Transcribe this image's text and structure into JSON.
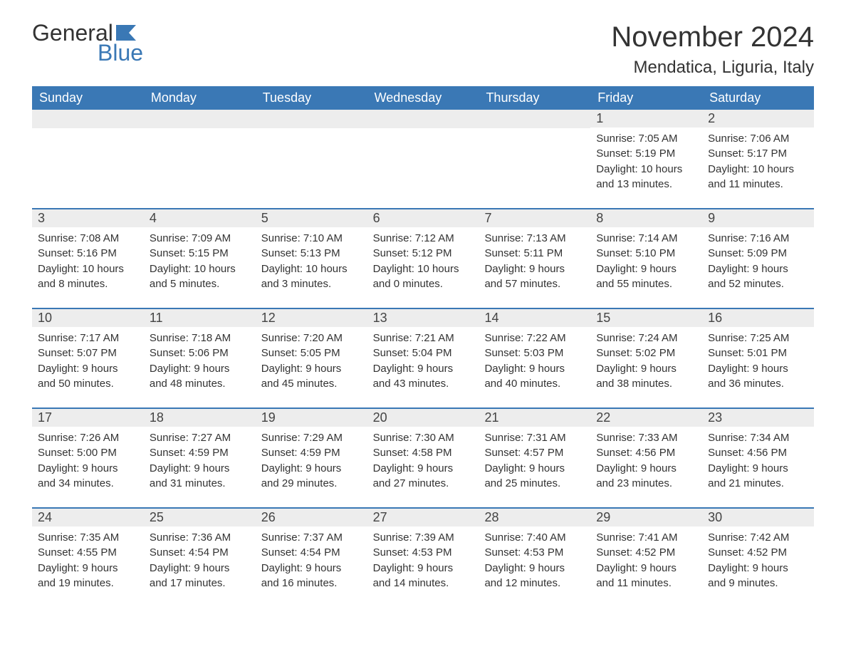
{
  "logo": {
    "word1": "General",
    "word2": "Blue"
  },
  "title": "November 2024",
  "location": "Mendatica, Liguria, Italy",
  "colors": {
    "header_bg": "#3a78b5",
    "header_text": "#ffffff",
    "daynum_bg": "#ededed",
    "rule": "#3a78b5",
    "text": "#333333",
    "logo_blue": "#3a78b5"
  },
  "fonts": {
    "title_size_pt": 30,
    "location_size_pt": 18,
    "weekday_size_pt": 14,
    "body_size_pt": 11
  },
  "weekdays": [
    "Sunday",
    "Monday",
    "Tuesday",
    "Wednesday",
    "Thursday",
    "Friday",
    "Saturday"
  ],
  "weeks": [
    [
      null,
      null,
      null,
      null,
      null,
      {
        "n": "1",
        "sunrise": "Sunrise: 7:05 AM",
        "sunset": "Sunset: 5:19 PM",
        "daylight1": "Daylight: 10 hours",
        "daylight2": "and 13 minutes."
      },
      {
        "n": "2",
        "sunrise": "Sunrise: 7:06 AM",
        "sunset": "Sunset: 5:17 PM",
        "daylight1": "Daylight: 10 hours",
        "daylight2": "and 11 minutes."
      }
    ],
    [
      {
        "n": "3",
        "sunrise": "Sunrise: 7:08 AM",
        "sunset": "Sunset: 5:16 PM",
        "daylight1": "Daylight: 10 hours",
        "daylight2": "and 8 minutes."
      },
      {
        "n": "4",
        "sunrise": "Sunrise: 7:09 AM",
        "sunset": "Sunset: 5:15 PM",
        "daylight1": "Daylight: 10 hours",
        "daylight2": "and 5 minutes."
      },
      {
        "n": "5",
        "sunrise": "Sunrise: 7:10 AM",
        "sunset": "Sunset: 5:13 PM",
        "daylight1": "Daylight: 10 hours",
        "daylight2": "and 3 minutes."
      },
      {
        "n": "6",
        "sunrise": "Sunrise: 7:12 AM",
        "sunset": "Sunset: 5:12 PM",
        "daylight1": "Daylight: 10 hours",
        "daylight2": "and 0 minutes."
      },
      {
        "n": "7",
        "sunrise": "Sunrise: 7:13 AM",
        "sunset": "Sunset: 5:11 PM",
        "daylight1": "Daylight: 9 hours",
        "daylight2": "and 57 minutes."
      },
      {
        "n": "8",
        "sunrise": "Sunrise: 7:14 AM",
        "sunset": "Sunset: 5:10 PM",
        "daylight1": "Daylight: 9 hours",
        "daylight2": "and 55 minutes."
      },
      {
        "n": "9",
        "sunrise": "Sunrise: 7:16 AM",
        "sunset": "Sunset: 5:09 PM",
        "daylight1": "Daylight: 9 hours",
        "daylight2": "and 52 minutes."
      }
    ],
    [
      {
        "n": "10",
        "sunrise": "Sunrise: 7:17 AM",
        "sunset": "Sunset: 5:07 PM",
        "daylight1": "Daylight: 9 hours",
        "daylight2": "and 50 minutes."
      },
      {
        "n": "11",
        "sunrise": "Sunrise: 7:18 AM",
        "sunset": "Sunset: 5:06 PM",
        "daylight1": "Daylight: 9 hours",
        "daylight2": "and 48 minutes."
      },
      {
        "n": "12",
        "sunrise": "Sunrise: 7:20 AM",
        "sunset": "Sunset: 5:05 PM",
        "daylight1": "Daylight: 9 hours",
        "daylight2": "and 45 minutes."
      },
      {
        "n": "13",
        "sunrise": "Sunrise: 7:21 AM",
        "sunset": "Sunset: 5:04 PM",
        "daylight1": "Daylight: 9 hours",
        "daylight2": "and 43 minutes."
      },
      {
        "n": "14",
        "sunrise": "Sunrise: 7:22 AM",
        "sunset": "Sunset: 5:03 PM",
        "daylight1": "Daylight: 9 hours",
        "daylight2": "and 40 minutes."
      },
      {
        "n": "15",
        "sunrise": "Sunrise: 7:24 AM",
        "sunset": "Sunset: 5:02 PM",
        "daylight1": "Daylight: 9 hours",
        "daylight2": "and 38 minutes."
      },
      {
        "n": "16",
        "sunrise": "Sunrise: 7:25 AM",
        "sunset": "Sunset: 5:01 PM",
        "daylight1": "Daylight: 9 hours",
        "daylight2": "and 36 minutes."
      }
    ],
    [
      {
        "n": "17",
        "sunrise": "Sunrise: 7:26 AM",
        "sunset": "Sunset: 5:00 PM",
        "daylight1": "Daylight: 9 hours",
        "daylight2": "and 34 minutes."
      },
      {
        "n": "18",
        "sunrise": "Sunrise: 7:27 AM",
        "sunset": "Sunset: 4:59 PM",
        "daylight1": "Daylight: 9 hours",
        "daylight2": "and 31 minutes."
      },
      {
        "n": "19",
        "sunrise": "Sunrise: 7:29 AM",
        "sunset": "Sunset: 4:59 PM",
        "daylight1": "Daylight: 9 hours",
        "daylight2": "and 29 minutes."
      },
      {
        "n": "20",
        "sunrise": "Sunrise: 7:30 AM",
        "sunset": "Sunset: 4:58 PM",
        "daylight1": "Daylight: 9 hours",
        "daylight2": "and 27 minutes."
      },
      {
        "n": "21",
        "sunrise": "Sunrise: 7:31 AM",
        "sunset": "Sunset: 4:57 PM",
        "daylight1": "Daylight: 9 hours",
        "daylight2": "and 25 minutes."
      },
      {
        "n": "22",
        "sunrise": "Sunrise: 7:33 AM",
        "sunset": "Sunset: 4:56 PM",
        "daylight1": "Daylight: 9 hours",
        "daylight2": "and 23 minutes."
      },
      {
        "n": "23",
        "sunrise": "Sunrise: 7:34 AM",
        "sunset": "Sunset: 4:56 PM",
        "daylight1": "Daylight: 9 hours",
        "daylight2": "and 21 minutes."
      }
    ],
    [
      {
        "n": "24",
        "sunrise": "Sunrise: 7:35 AM",
        "sunset": "Sunset: 4:55 PM",
        "daylight1": "Daylight: 9 hours",
        "daylight2": "and 19 minutes."
      },
      {
        "n": "25",
        "sunrise": "Sunrise: 7:36 AM",
        "sunset": "Sunset: 4:54 PM",
        "daylight1": "Daylight: 9 hours",
        "daylight2": "and 17 minutes."
      },
      {
        "n": "26",
        "sunrise": "Sunrise: 7:37 AM",
        "sunset": "Sunset: 4:54 PM",
        "daylight1": "Daylight: 9 hours",
        "daylight2": "and 16 minutes."
      },
      {
        "n": "27",
        "sunrise": "Sunrise: 7:39 AM",
        "sunset": "Sunset: 4:53 PM",
        "daylight1": "Daylight: 9 hours",
        "daylight2": "and 14 minutes."
      },
      {
        "n": "28",
        "sunrise": "Sunrise: 7:40 AM",
        "sunset": "Sunset: 4:53 PM",
        "daylight1": "Daylight: 9 hours",
        "daylight2": "and 12 minutes."
      },
      {
        "n": "29",
        "sunrise": "Sunrise: 7:41 AM",
        "sunset": "Sunset: 4:52 PM",
        "daylight1": "Daylight: 9 hours",
        "daylight2": "and 11 minutes."
      },
      {
        "n": "30",
        "sunrise": "Sunrise: 7:42 AM",
        "sunset": "Sunset: 4:52 PM",
        "daylight1": "Daylight: 9 hours",
        "daylight2": "and 9 minutes."
      }
    ]
  ]
}
